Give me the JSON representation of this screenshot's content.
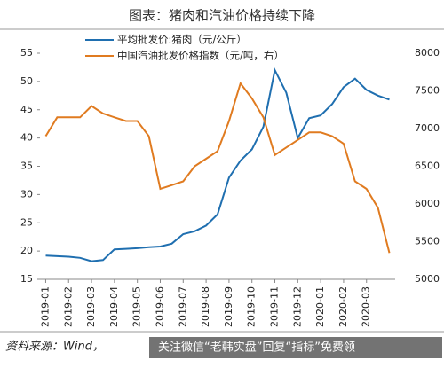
{
  "chart_data": {
    "type": "line",
    "title": "图表：猪肉和汽油价格持续下降",
    "categories": [
      "2019-01",
      null,
      "2019-02",
      null,
      "2019-03",
      null,
      "2019-04",
      null,
      "2019-05",
      null,
      "2019-06",
      null,
      "2019-07",
      null,
      "2019-08",
      null,
      "2019-09",
      null,
      "2019-10",
      null,
      "2019-11",
      null,
      "2019-12",
      null,
      "2020-01",
      null,
      "2020-02",
      null,
      "2020-03",
      null,
      null
    ],
    "series": [
      {
        "name": "平均批发价:猪肉（元/公斤）",
        "color": "#1f6fb0",
        "values": [
          19.2,
          19.1,
          19.0,
          18.8,
          18.2,
          18.4,
          20.3,
          20.4,
          20.5,
          20.7,
          20.8,
          21.3,
          23.0,
          23.5,
          24.5,
          26.5,
          33,
          36,
          38,
          42,
          52,
          48,
          40,
          43.5,
          44,
          46,
          49,
          50.5,
          48.5,
          47.5,
          46.8
        ]
      },
      {
        "name": "中国汽油批发价格指数（元/吨，右）",
        "color": "#e07b20",
        "axis": "y2",
        "values": [
          6900,
          7150,
          7150,
          7150,
          7300,
          7200,
          7150,
          7100,
          7100,
          6900,
          6200,
          6250,
          6300,
          6500,
          6600,
          6700,
          7100,
          7600,
          7400,
          7150,
          6650,
          6750,
          6850,
          6950,
          6950,
          6900,
          6800,
          6300,
          6200,
          5950,
          5350
        ]
      }
    ],
    "ylim": [
      15,
      55
    ],
    "yticks": [
      15,
      20,
      25,
      30,
      35,
      40,
      45,
      50,
      55
    ],
    "y2lim": [
      5000,
      8000
    ],
    "y2ticks": [
      5000,
      5500,
      6000,
      6500,
      7000,
      7500,
      8000
    ],
    "source": "资料来源：Wind，",
    "watermark": "关注微信“老韩实盘”回复“指标”免费领"
  }
}
